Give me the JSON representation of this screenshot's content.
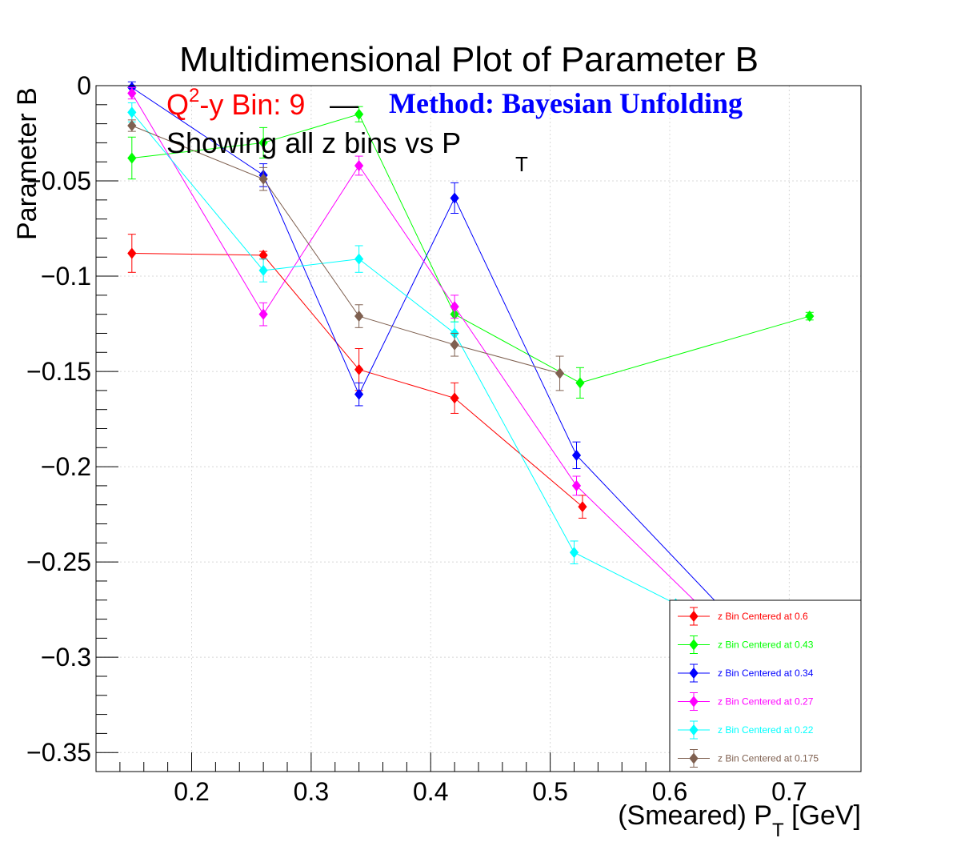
{
  "chart_data": {
    "type": "line",
    "title": "Multidimensional Plot of Parameter B",
    "subtitle": {
      "bin_prefix": "Q",
      "bin_sup": "2",
      "bin_rest": "-y Bin: 9",
      "dash": "—",
      "method": "Method: Bayesian Unfolding",
      "line2": "Showing all z bins vs P",
      "line2_sub": "T"
    },
    "xlabel": "(Smeared) P",
    "xlabel_sub": "T",
    "xlabel_unit": " [GeV]",
    "ylabel": "Parameter B",
    "xlim": [
      0.12,
      0.76
    ],
    "ylim": [
      -0.36,
      0.0
    ],
    "xticks": [
      0.2,
      0.3,
      0.4,
      0.5,
      0.6,
      0.7
    ],
    "xtick_labels": [
      "0.2",
      "0.3",
      "0.4",
      "0.5",
      "0.6",
      "0.7"
    ],
    "yticks": [
      0,
      -0.05,
      -0.1,
      -0.15,
      -0.2,
      -0.25,
      -0.3,
      -0.35
    ],
    "ytick_labels": [
      "0",
      "−0.05",
      "−0.1",
      "−0.15",
      "−0.2",
      "−0.25",
      "−0.3",
      "−0.35"
    ],
    "grid": true,
    "legend_position": "bottom-right",
    "series": [
      {
        "name": "z Bin Centered at 0.6",
        "color": "#ff0000",
        "x": [
          0.15,
          0.26,
          0.34,
          0.42,
          0.527
        ],
        "y": [
          -0.088,
          -0.089,
          -0.149,
          -0.164,
          -0.221
        ],
        "err": [
          0.01,
          0.002,
          0.011,
          0.008,
          0.006
        ]
      },
      {
        "name": "z Bin Centered at 0.43",
        "color": "#00ff00",
        "x": [
          0.15,
          0.26,
          0.34,
          0.42,
          0.525,
          0.717
        ],
        "y": [
          -0.038,
          -0.03,
          -0.015,
          -0.12,
          -0.156,
          -0.121
        ],
        "err": [
          0.011,
          0.008,
          0.004,
          0.004,
          0.008,
          0.002
        ]
      },
      {
        "name": "z Bin Centered at 0.34",
        "color": "#0000ff",
        "x": [
          0.15,
          0.26,
          0.34,
          0.42,
          0.522,
          0.66
        ],
        "y": [
          -0.001,
          -0.047,
          -0.162,
          -0.059,
          -0.194,
          -0.285
        ],
        "err": [
          0.003,
          0.006,
          0.006,
          0.008,
          0.007,
          0.0
        ]
      },
      {
        "name": "z Bin Centered at 0.27",
        "color": "#ff00ff",
        "x": [
          0.15,
          0.26,
          0.34,
          0.42,
          0.522,
          0.63
        ],
        "y": [
          -0.004,
          -0.12,
          -0.042,
          -0.116,
          -0.21,
          -0.276
        ],
        "err": [
          0.003,
          0.006,
          0.005,
          0.006,
          0.005,
          0.0
        ]
      },
      {
        "name": "z Bin Centered at 0.22",
        "color": "#00ffff",
        "x": [
          0.15,
          0.26,
          0.34,
          0.42,
          0.52,
          0.605
        ],
        "y": [
          -0.014,
          -0.097,
          -0.091,
          -0.13,
          -0.245,
          -0.272
        ],
        "err": [
          0.005,
          0.006,
          0.007,
          0.006,
          0.006,
          0.0
        ]
      },
      {
        "name": "z Bin Centered at 0.175",
        "color": "#7f6050",
        "x": [
          0.15,
          0.26,
          0.34,
          0.42,
          0.508
        ],
        "y": [
          -0.021,
          -0.049,
          -0.121,
          -0.136,
          -0.151
        ],
        "err": [
          0.003,
          0.006,
          0.006,
          0.006,
          0.009
        ]
      }
    ]
  }
}
